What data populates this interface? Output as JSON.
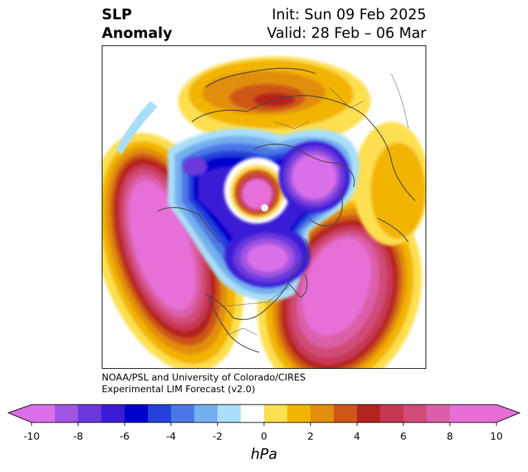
{
  "title": {
    "left_line1": "SLP",
    "left_line2": "Anomaly",
    "right_line1": "Init: Sun 09 Feb 2025",
    "right_line2": "Valid: 28 Feb – 06 Mar"
  },
  "credit": {
    "line1": "NOAA/PSL and University of Colorado/CIRES",
    "line2": "Experimental LIM Forecast (v2.0)"
  },
  "colorbar": {
    "units": "hPa",
    "ticks": [
      "-10",
      "-8",
      "-6",
      "-4",
      "-2",
      "0",
      "2",
      "4",
      "6",
      "8",
      "10"
    ],
    "colors": [
      "#da6fe9",
      "#a153e1",
      "#6a37dc",
      "#3a1cd6",
      "#0000cd",
      "#2341da",
      "#4c76e6",
      "#74afef",
      "#aadef8",
      "#ffffff",
      "#fddf4f",
      "#f2b400",
      "#e28e0e",
      "#cd5619",
      "#b4241e",
      "#c63752",
      "#d14c78",
      "#db5fa8",
      "#e66fd6",
      "#e66fd6"
    ],
    "min_color": "#da6fe9",
    "max_color": "#e66fd6"
  }
}
